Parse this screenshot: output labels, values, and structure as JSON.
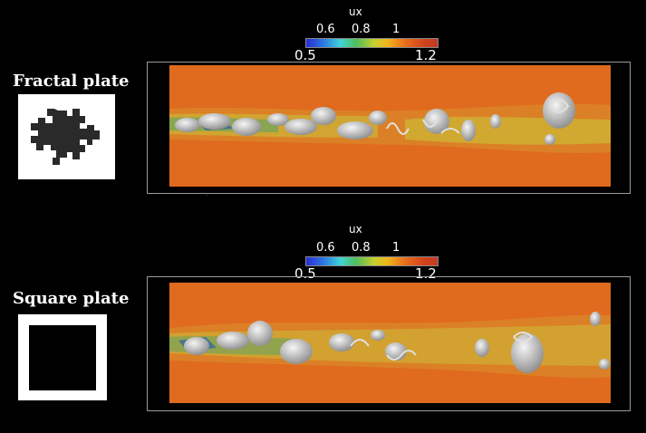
{
  "panels": [
    {
      "plate_label": "Fractal plate",
      "colorbar": {
        "title": "ux",
        "upper_ticks": [
          "0.6",
          "0.8",
          "1"
        ],
        "lower_ticks": [
          "0.5",
          "1.2"
        ]
      }
    },
    {
      "plate_label": "Square plate",
      "colorbar": {
        "title": "ux",
        "upper_ticks": [
          "0.6",
          "0.8",
          "1"
        ],
        "lower_ticks": [
          "0.5",
          "1.2"
        ]
      }
    }
  ],
  "colors": {
    "background": "#000000",
    "field_base": "#e06a1e",
    "vortex": "#d6d6d6",
    "wake_yellow": "#d9c330",
    "wake_green": "#6fae55",
    "wake_blue": "#2c5fa8"
  }
}
